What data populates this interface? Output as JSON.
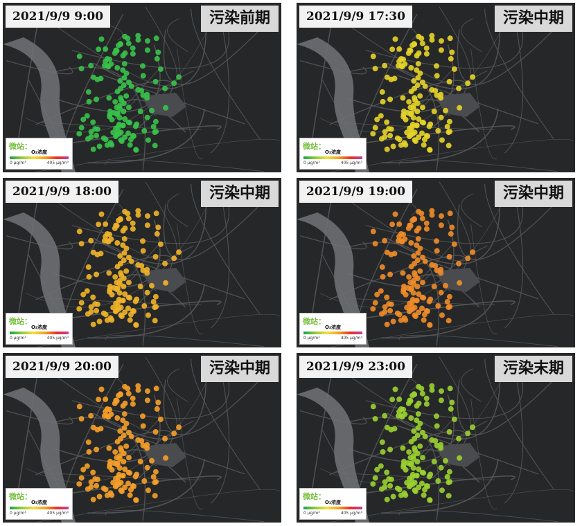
{
  "legend": {
    "title": "微站：",
    "pollutant": "O₃浓度",
    "min_label": "0 μg/m³",
    "max_label": "405 μg/m³"
  },
  "panels": [
    {
      "timestamp": "2021/9/9 9:00",
      "stage": "污染前期",
      "color": "#38c24a"
    },
    {
      "timestamp": "2021/9/9 17:30",
      "stage": "污染中期",
      "color": "#e6d428"
    },
    {
      "timestamp": "2021/9/9 18:00",
      "stage": "污染中期",
      "color": "#f0b428"
    },
    {
      "timestamp": "2021/9/9 19:00",
      "stage": "污染中期",
      "color": "#f08c28"
    },
    {
      "timestamp": "2021/9/9 20:00",
      "stage": "污染中期",
      "color": "#f5a028"
    },
    {
      "timestamp": "2021/9/9 23:00",
      "stage": "污染末期",
      "color": "#9ad030"
    }
  ]
}
